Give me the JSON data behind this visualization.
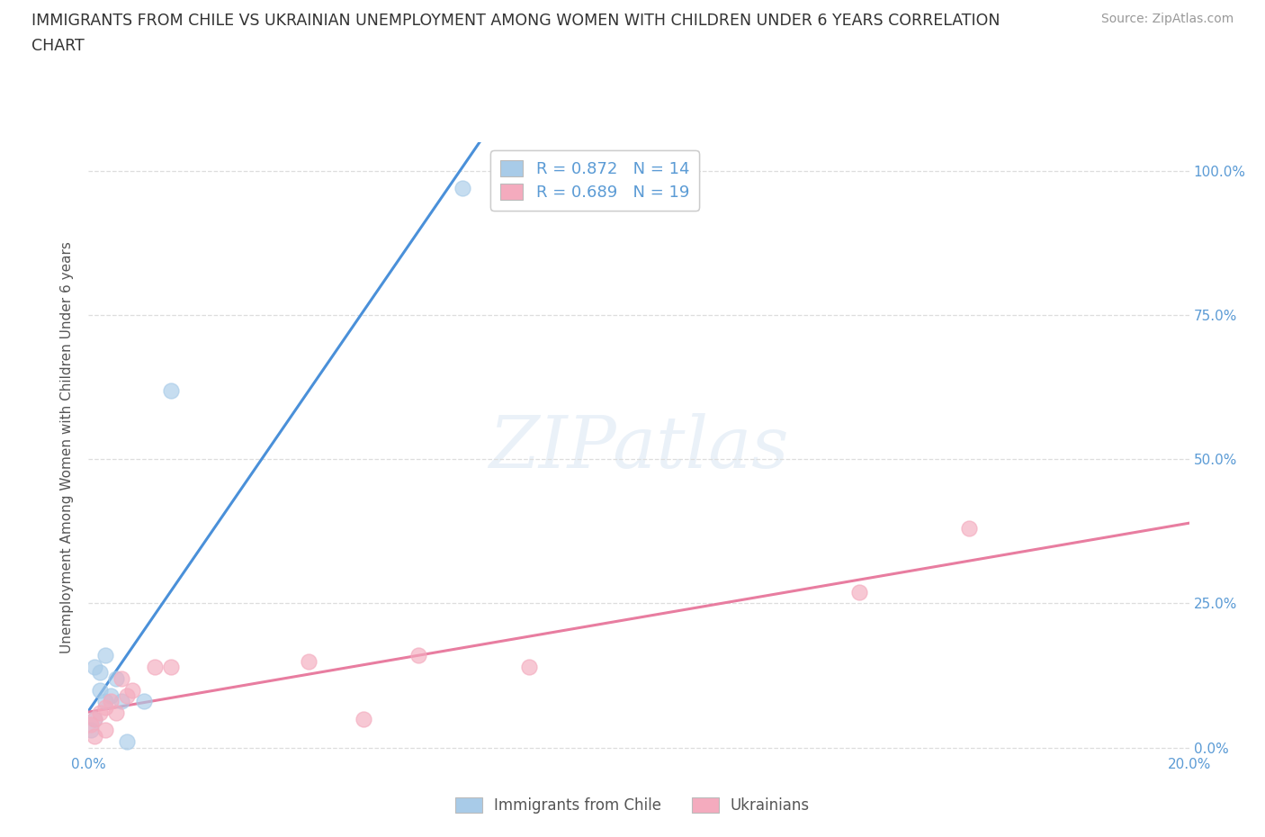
{
  "title_line1": "IMMIGRANTS FROM CHILE VS UKRAINIAN UNEMPLOYMENT AMONG WOMEN WITH CHILDREN UNDER 6 YEARS CORRELATION",
  "title_line2": "CHART",
  "source": "Source: ZipAtlas.com",
  "ylabel": "Unemployment Among Women with Children Under 6 years",
  "ytick_labels_right": [
    "100.0%",
    "75.0%",
    "50.0%",
    "25.0%",
    "0.0%"
  ],
  "ytick_values": [
    1.0,
    0.75,
    0.5,
    0.25,
    0.0
  ],
  "xlim": [
    0.0,
    0.2
  ],
  "ylim": [
    -0.01,
    1.05
  ],
  "chile_color": "#A8CBE8",
  "ukraine_color": "#F4ABBE",
  "chile_line_color": "#4A90D9",
  "ukraine_line_color": "#E87DA0",
  "legend_chile_label": "Immigrants from Chile",
  "legend_ukraine_label": "Ukrainians",
  "R_chile": "0.872",
  "N_chile": "14",
  "R_ukraine": "0.689",
  "N_ukraine": "19",
  "background_color": "#ffffff",
  "watermark": "ZIPatlas",
  "grid_color": "#dddddd",
  "tick_color": "#5B9BD5",
  "label_color": "#555555",
  "chile_x": [
    0.0005,
    0.001,
    0.001,
    0.002,
    0.002,
    0.003,
    0.003,
    0.004,
    0.005,
    0.006,
    0.007,
    0.01,
    0.015,
    0.068
  ],
  "chile_y": [
    0.03,
    0.05,
    0.14,
    0.1,
    0.13,
    0.08,
    0.16,
    0.09,
    0.12,
    0.08,
    0.01,
    0.08,
    0.62,
    0.97
  ],
  "ukraine_x": [
    0.0005,
    0.001,
    0.001,
    0.002,
    0.003,
    0.003,
    0.004,
    0.005,
    0.006,
    0.007,
    0.008,
    0.012,
    0.015,
    0.04,
    0.05,
    0.06,
    0.08,
    0.14,
    0.16
  ],
  "ukraine_y": [
    0.04,
    0.02,
    0.05,
    0.06,
    0.03,
    0.07,
    0.08,
    0.06,
    0.12,
    0.09,
    0.1,
    0.14,
    0.14,
    0.15,
    0.05,
    0.16,
    0.14,
    0.27,
    0.38
  ]
}
